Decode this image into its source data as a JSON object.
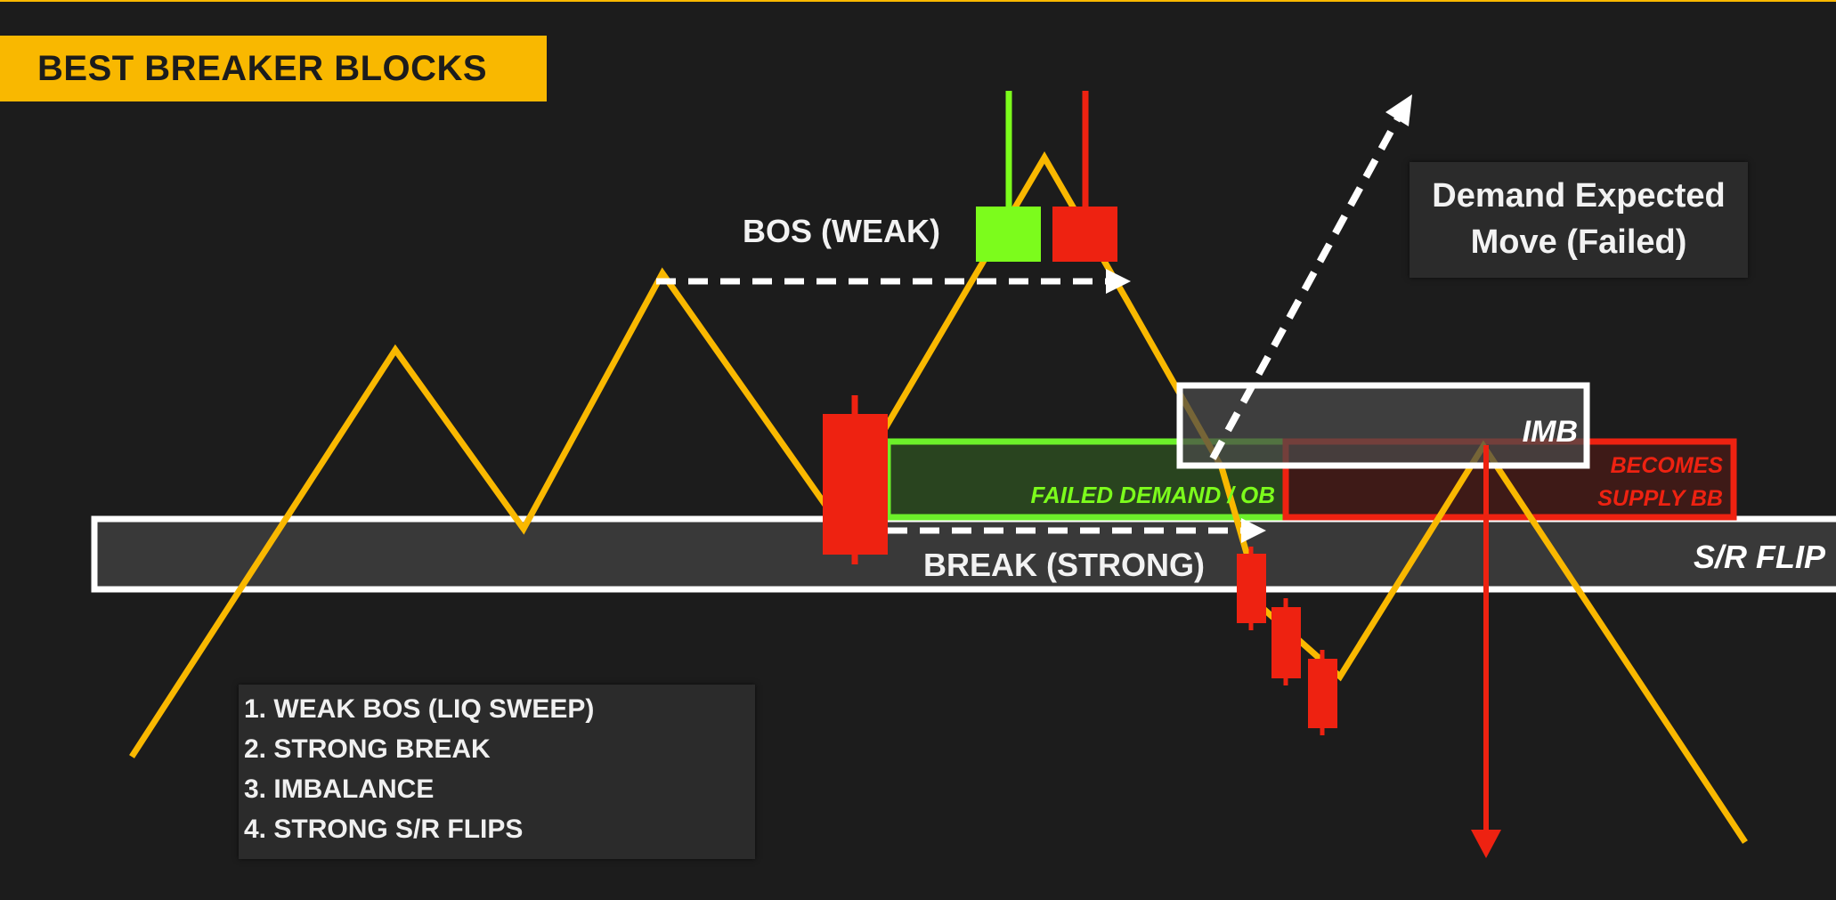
{
  "title": "BEST BREAKER BLOCKS",
  "labels": {
    "bos_weak": "BOS (WEAK)",
    "break_strong": "BREAK (STRONG)",
    "failed_demand": "FAILED DEMAND / OB",
    "imb": "IMB",
    "becomes_line1": "BECOMES",
    "becomes_line2": "SUPPLY BB",
    "sr_flip": "S/R FLIP"
  },
  "expected_panel": {
    "line1": "Demand Expected",
    "line2": "Move (Failed)"
  },
  "list": [
    "1. WEAK BOS (LIQ SWEEP)",
    "2. STRONG BREAK",
    "3. IMBALANCE",
    "4. STRONG S/R FLIPS"
  ],
  "colors": {
    "background": "#1c1c1c",
    "price_line": "#f9b800",
    "bullish_candle": "#7cfc1c",
    "bearish_candle": "#ee2211",
    "zone_outline": "#ffffff",
    "demand_zone": "#6cf02a",
    "supply_zone": "#ee2211",
    "title_bg": "#f9b800"
  }
}
